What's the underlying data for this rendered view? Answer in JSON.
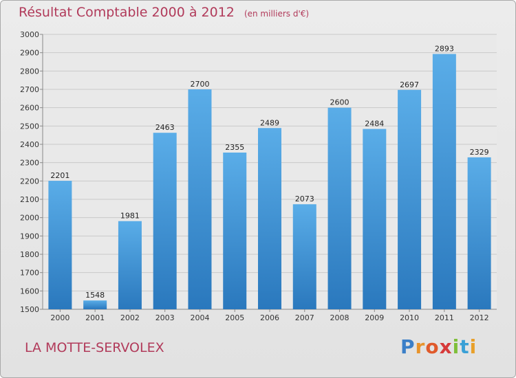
{
  "chart_data": {
    "type": "bar",
    "title": "Résultat Comptable 2000 à 2012",
    "subtitle": "(en milliers d'€)",
    "categories": [
      "2000",
      "2001",
      "2002",
      "2003",
      "2004",
      "2005",
      "2006",
      "2007",
      "2008",
      "2009",
      "2010",
      "2011",
      "2012"
    ],
    "values": [
      2201,
      1548,
      1981,
      2463,
      2700,
      2355,
      2489,
      2073,
      2600,
      2484,
      2697,
      2893,
      2329
    ],
    "ylim": [
      1500,
      3000
    ],
    "yticks": [
      1500,
      1600,
      1700,
      1800,
      1900,
      2000,
      2100,
      2200,
      2300,
      2400,
      2500,
      2600,
      2700,
      2800,
      2900,
      3000
    ],
    "grid": true,
    "bar_color": "#3d8fd6"
  },
  "footer": {
    "commune": "LA MOTTE-SERVOLEX",
    "brand_letters": [
      {
        "ch": "P",
        "color": "#3b7fc8"
      },
      {
        "ch": "r",
        "color": "#e8932b"
      },
      {
        "ch": "o",
        "color": "#e05a2b"
      },
      {
        "ch": "x",
        "color": "#d63a3a"
      },
      {
        "ch": "i",
        "color": "#7fbf3a"
      },
      {
        "ch": "t",
        "color": "#3aa0d6"
      },
      {
        "ch": "i",
        "color": "#e8a02b"
      }
    ]
  }
}
